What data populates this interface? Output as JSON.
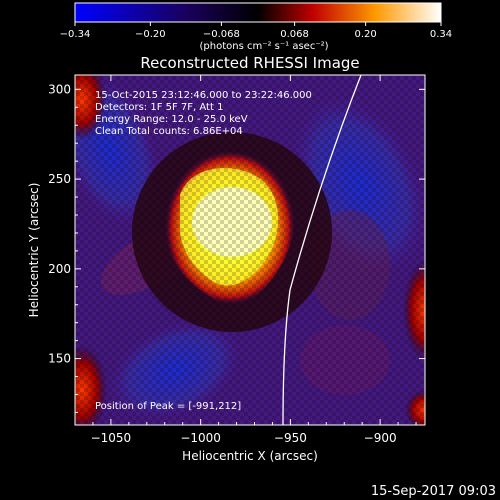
{
  "chart_data": {
    "type": "heatmap",
    "title": "Reconstructed RHESSI Image",
    "xlabel": "Heliocentric X (arcsec)",
    "ylabel": "Heliocentric Y (arcsec)",
    "xlim": [
      -1070,
      -875
    ],
    "ylim": [
      113,
      308
    ],
    "xticks": [
      -1050,
      -1000,
      -950,
      -900
    ],
    "yticks": [
      150,
      200,
      250,
      300
    ],
    "colorbar": {
      "min": -0.34,
      "max": 0.34,
      "ticks": [
        "-0.34",
        "-0.20",
        "-0.068",
        "0.068",
        "0.20",
        "0.34"
      ],
      "unit_label": "(photons cm⁻² s⁻¹ asec⁻²)"
    },
    "annotations": [
      "15-Oct-2015 23:12:46.000 to 23:22:46.000",
      "Detectors: 1F 5F 7F, Att 1",
      "Energy Range: 12.0 - 25.0 keV",
      "Clean    Total counts: 6.86E+04"
    ],
    "peak": [
      -991,
      212
    ],
    "peak_label": "Position of Peak = [-991,212]",
    "timestamp": "15-Sep-2017 09:03"
  },
  "colors": {
    "colormap": [
      "#0000ff",
      "#000000",
      "#ff0000",
      "#ffff00",
      "#ffffff"
    ]
  }
}
